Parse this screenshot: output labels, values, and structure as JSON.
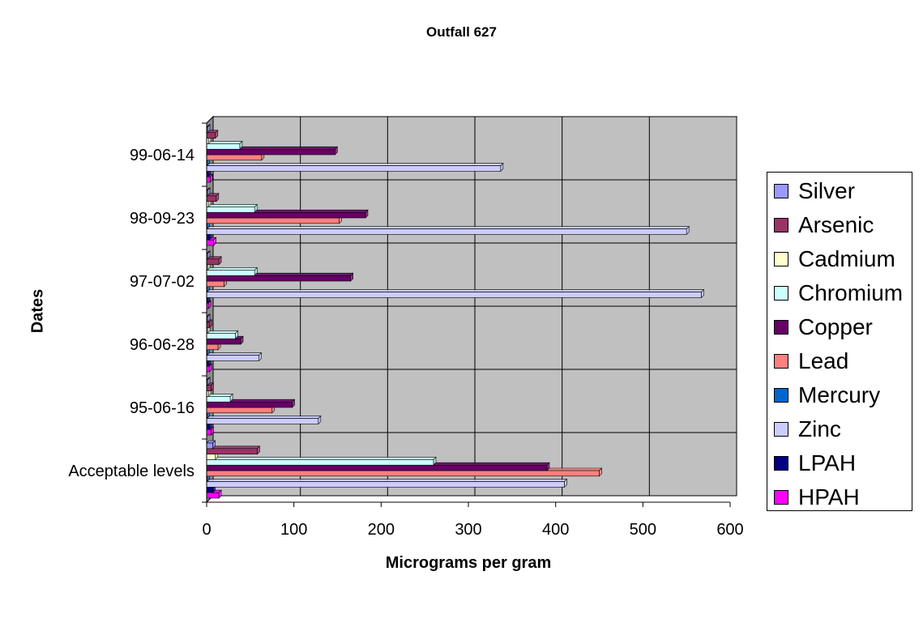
{
  "chart_data": {
    "type": "bar",
    "orientation": "horizontal",
    "title": "Outfall 627",
    "xlabel": "Micrograms per gram",
    "ylabel": "Dates",
    "xlim": [
      0,
      600
    ],
    "xticks": [
      0,
      100,
      200,
      300,
      400,
      500,
      600
    ],
    "grid": true,
    "legend_position": "right",
    "categories": [
      "Acceptable levels",
      "95-06-16",
      "96-06-28",
      "97-07-02",
      "98-09-23",
      "99-06-14"
    ],
    "series": [
      {
        "name": "HPAH",
        "color": "#ff00ff",
        "values": [
          14,
          5,
          3,
          2,
          8,
          4
        ]
      },
      {
        "name": "LPAH",
        "color": "#000080",
        "values": [
          7,
          3,
          2,
          1,
          3,
          2
        ]
      },
      {
        "name": "Zinc",
        "color": "#ccccff",
        "values": [
          410,
          128,
          60,
          567,
          550,
          337
        ]
      },
      {
        "name": "Mercury",
        "color": "#0066cc",
        "values": [
          0.4,
          0.2,
          0.2,
          0.3,
          0.2,
          0.2
        ]
      },
      {
        "name": "Lead",
        "color": "#ff8080",
        "values": [
          450,
          75,
          13,
          20,
          152,
          63
        ]
      },
      {
        "name": "Copper",
        "color": "#660066",
        "values": [
          390,
          98,
          39,
          165,
          182,
          147
        ]
      },
      {
        "name": "Chromium",
        "color": "#ccffff",
        "values": [
          260,
          27,
          33,
          55,
          55,
          38
        ]
      },
      {
        "name": "Cadmium",
        "color": "#ffffcc",
        "values": [
          10,
          2,
          1,
          1,
          2,
          2
        ]
      },
      {
        "name": "Arsenic",
        "color": "#993366",
        "values": [
          58,
          5,
          3,
          14,
          11,
          10
        ]
      },
      {
        "name": "Silver",
        "color": "#9999ff",
        "values": [
          7,
          1,
          1,
          1,
          1,
          1
        ]
      }
    ]
  },
  "colors": {
    "plot_background": "#c0c0c0",
    "gridline": "#000000"
  }
}
